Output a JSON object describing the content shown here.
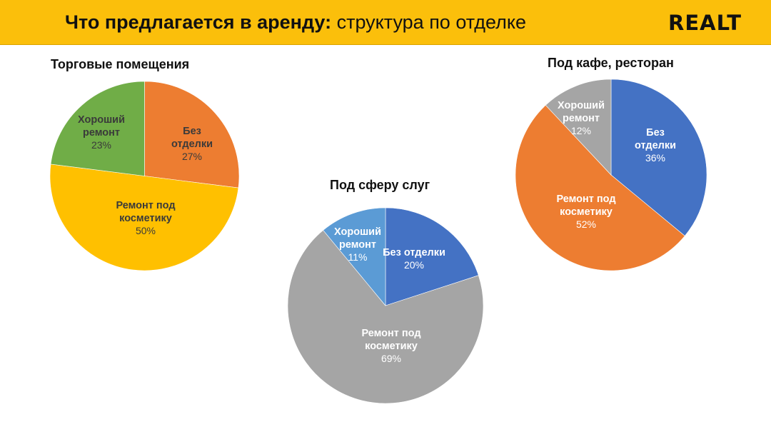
{
  "header": {
    "title_bold": "Что предлагается в аренду:",
    "title_regular": "структура по отделке",
    "logo": "REALT",
    "background": "#FBBF0B"
  },
  "chart_data": [
    {
      "type": "pie",
      "title": "Торговые помещения",
      "slices": [
        {
          "label": "Без отделки",
          "value": 27,
          "display": "27%",
          "color": "#ED7D31"
        },
        {
          "label": "Ремонт под косметику",
          "value": 50,
          "display": "50%",
          "color": "#FFC000"
        },
        {
          "label": "Хороший ремонт",
          "value": 23,
          "display": "23%",
          "color": "#70AD47"
        }
      ]
    },
    {
      "type": "pie",
      "title": "Под сферу слуг",
      "slices": [
        {
          "label": "Без отделки",
          "value": 20,
          "display": "20%",
          "color": "#4472C4"
        },
        {
          "label": "Ремонт под косметику",
          "value": 69,
          "display": "69%",
          "color": "#A5A5A5"
        },
        {
          "label": "Хороший ремонт",
          "value": 11,
          "display": "11%",
          "color": "#5B9BD5"
        }
      ]
    },
    {
      "type": "pie",
      "title": "Под кафе, ресторан",
      "slices": [
        {
          "label": "Без отделки",
          "value": 36,
          "display": "36%",
          "color": "#4472C4"
        },
        {
          "label": "Ремонт под косметику",
          "value": 52,
          "display": "52%",
          "color": "#ED7D31"
        },
        {
          "label": "Хороший ремонт",
          "value": 12,
          "display": "12%",
          "color": "#A5A5A5"
        }
      ]
    }
  ]
}
